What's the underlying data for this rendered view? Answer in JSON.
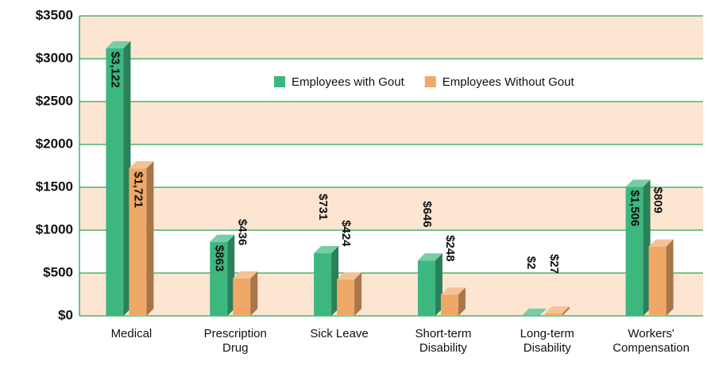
{
  "chart_data": {
    "type": "bar3d",
    "categories": [
      "Medical",
      "Prescription Drug",
      "Sick Leave",
      "Short-term Disability",
      "Long-term Disability",
      "Workers' Compensation"
    ],
    "series": [
      {
        "name": "Employees with Gout",
        "color": "#3cb77f",
        "values": [
          3122,
          863,
          731,
          646,
          2,
          1506
        ],
        "value_labels": [
          "$3,122",
          "$863",
          "$731",
          "$646",
          "$2",
          "$1,506"
        ]
      },
      {
        "name": "Employees Without Gout",
        "color": "#f0a868",
        "values": [
          1721,
          436,
          424,
          248,
          27,
          809
        ],
        "value_labels": [
          "$1,721",
          "$436",
          "$424",
          "$248",
          "$27",
          "$809"
        ]
      }
    ],
    "ylim": [
      0,
      3500
    ],
    "yticks": [
      {
        "value": 0,
        "label": "$0"
      },
      {
        "value": 500,
        "label": "$500"
      },
      {
        "value": 1000,
        "label": "$1000"
      },
      {
        "value": 1500,
        "label": "$1500"
      },
      {
        "value": 2000,
        "label": "$2000"
      },
      {
        "value": 2500,
        "label": "$2500"
      },
      {
        "value": 3000,
        "label": "$3000"
      },
      {
        "value": 3500,
        "label": "$3500"
      }
    ],
    "grid": true
  }
}
